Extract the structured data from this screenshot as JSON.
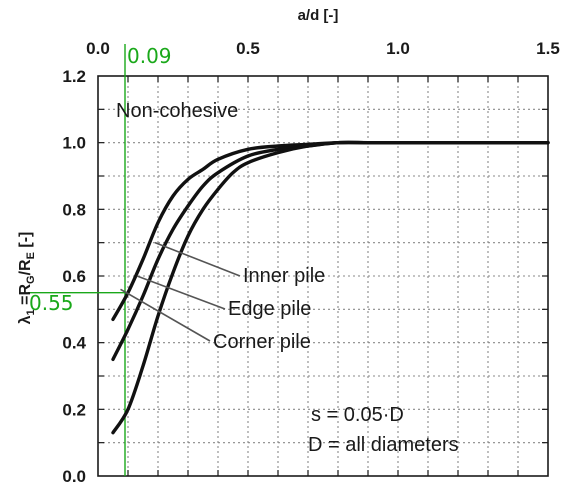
{
  "chart_data": {
    "type": "line",
    "xlabel": "a/d [-]",
    "ylabel": "λ₁ = R_G/R_E [-]",
    "xlim": [
      0,
      1.5
    ],
    "ylim": [
      0,
      1.2
    ],
    "x_ticks": [
      "0.0",
      "0.5",
      "1.0",
      "1.5"
    ],
    "y_ticks": [
      "0.0",
      "0.2",
      "0.4",
      "0.6",
      "0.8",
      "1.0",
      "1.2"
    ],
    "grid": true,
    "series": [
      {
        "name": "Inner pile",
        "x": [
          0.05,
          0.1,
          0.15,
          0.2,
          0.25,
          0.3,
          0.35,
          0.4,
          0.5,
          0.6,
          0.7,
          0.8,
          0.9,
          1.0,
          1.5
        ],
        "y": [
          0.47,
          0.55,
          0.65,
          0.76,
          0.84,
          0.89,
          0.92,
          0.95,
          0.98,
          0.99,
          0.995,
          1.0,
          1.0,
          1.0,
          1.0
        ]
      },
      {
        "name": "Edge pile",
        "x": [
          0.05,
          0.1,
          0.15,
          0.2,
          0.25,
          0.3,
          0.35,
          0.4,
          0.5,
          0.6,
          0.7,
          0.8,
          0.9,
          1.0,
          1.5
        ],
        "y": [
          0.35,
          0.44,
          0.54,
          0.65,
          0.74,
          0.81,
          0.87,
          0.91,
          0.96,
          0.98,
          0.99,
          1.0,
          1.0,
          1.0,
          1.0
        ]
      },
      {
        "name": "Corner pile",
        "x": [
          0.05,
          0.1,
          0.15,
          0.2,
          0.25,
          0.3,
          0.35,
          0.4,
          0.45,
          0.5,
          0.6,
          0.7,
          0.8,
          0.9,
          1.0,
          1.5
        ],
        "y": [
          0.13,
          0.2,
          0.33,
          0.48,
          0.61,
          0.72,
          0.8,
          0.86,
          0.91,
          0.94,
          0.97,
          0.99,
          1.0,
          1.0,
          1.0,
          1.0
        ]
      }
    ],
    "annotations": {
      "regime": "Non-cohesive",
      "settlement": "s  = 0.05·D",
      "diameters": "D = all diameters"
    },
    "marker": {
      "x": 0.09,
      "y": 0.55,
      "x_label": "0.09",
      "y_label": "0.55",
      "color": "#1aa81a"
    }
  }
}
